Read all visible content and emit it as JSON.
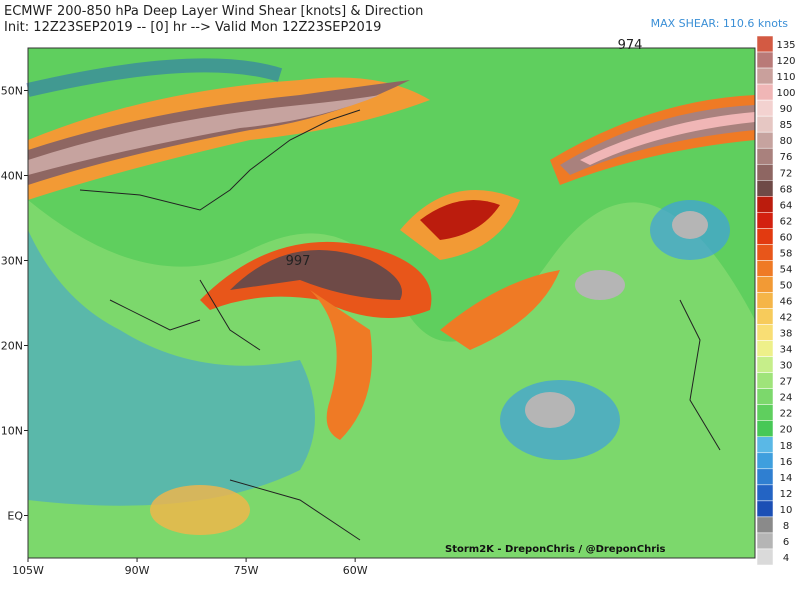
{
  "header": {
    "title": "ECMWF 200-850 hPa Deep Layer Wind Shear [knots] & Direction",
    "subtitle": "Init: 12Z23SEP2019 -- [0] hr --> Valid Mon 12Z23SEP2019",
    "max_shear": "MAX SHEAR: 110.6 knots"
  },
  "map": {
    "xlim": [
      -105,
      -5
    ],
    "ylim": [
      -5,
      55
    ],
    "lon_ticks": [
      {
        "value": -105,
        "label": "105W"
      },
      {
        "value": -90,
        "label": "90W"
      },
      {
        "value": -75,
        "label": "75W"
      },
      {
        "value": -60,
        "label": "60W"
      }
    ],
    "lat_ticks": [
      {
        "value": 50,
        "label": "50N"
      },
      {
        "value": 40,
        "label": "40N"
      },
      {
        "value": 30,
        "label": "30N"
      },
      {
        "value": 20,
        "label": "20N"
      },
      {
        "value": 10,
        "label": "10N"
      },
      {
        "value": 0,
        "label": "EQ"
      }
    ],
    "pressure_labels": [
      "974",
      "997"
    ],
    "credit": "Storm2K - DreponChris / @DreponChris"
  },
  "colorbar": {
    "levels": [
      135,
      120,
      110,
      100,
      90,
      85,
      80,
      76,
      72,
      68,
      64,
      62,
      60,
      58,
      54,
      50,
      46,
      42,
      38,
      34,
      30,
      27,
      24,
      22,
      20,
      18,
      16,
      14,
      12,
      10,
      8,
      6,
      4
    ],
    "colors": [
      "#d35a43",
      "#b97a78",
      "#c9a09c",
      "#f0b6b6",
      "#f3d2d0",
      "#e6c7c3",
      "#c6a39f",
      "#a9817d",
      "#8e6662",
      "#6e4a47",
      "#bb1c0d",
      "#d3200f",
      "#e23a10",
      "#e8561a",
      "#ef7a25",
      "#f29a35",
      "#f5b548",
      "#f7cb5b",
      "#f9de74",
      "#eef08a",
      "#c6ee8a",
      "#9fe47a",
      "#7cd86c",
      "#5fcf5e",
      "#47c856",
      "#5ab8e6",
      "#3e9fde",
      "#2f7fd1",
      "#2364c4",
      "#1b4fb5",
      "#8a8a8a",
      "#b5b5b5",
      "#dadada"
    ]
  }
}
